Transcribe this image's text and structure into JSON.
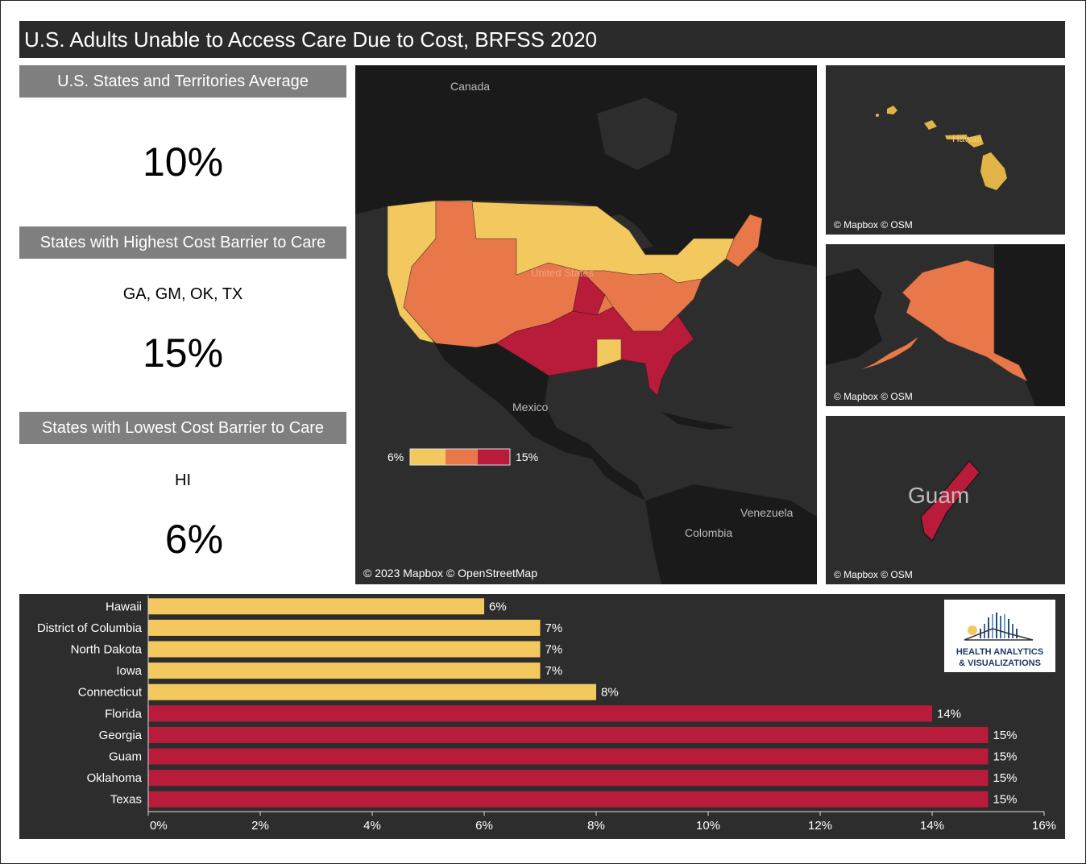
{
  "title": "U.S. Adults Unable to Access Care Due to Cost, BRFSS 2020",
  "average": {
    "header": "U.S. States and Territories Average",
    "value": "10%"
  },
  "highest": {
    "header": "States with Highest Cost Barrier to Care",
    "states": "GA, GM, OK, TX",
    "value": "15%"
  },
  "lowest": {
    "header": "States with Lowest Cost Barrier to Care",
    "states": "HI",
    "value": "6%"
  },
  "main_map": {
    "labels": {
      "canada": "Canada",
      "us": "United States",
      "mexico": "Mexico",
      "venezuela": "Venezuela",
      "colombia": "Colombia"
    },
    "legend": {
      "min": "6%",
      "max": "15%"
    },
    "attribution": "© 2023 Mapbox © OpenStreetMap"
  },
  "hawaii_map": {
    "label": "Hawaii",
    "attribution": "© Mapbox © OSM"
  },
  "alaska_map": {
    "attribution": "© Mapbox © OSM"
  },
  "guam_map": {
    "label": "Guam",
    "attribution": "© Mapbox © OSM"
  },
  "logo": {
    "line1": "HEALTH ANALYTICS",
    "line2": "& VISUALIZATIONS"
  },
  "colors": {
    "low": "#f3c95f",
    "mid": "#e8784a",
    "high": "#b81c3a",
    "panel": "#2d2d2d",
    "land": "#1a1a1a"
  },
  "chart_data": {
    "type": "bar",
    "orientation": "horizontal",
    "categories": [
      "Hawaii",
      "District of Columbia",
      "North Dakota",
      "Iowa",
      "Connecticut",
      "Florida",
      "Georgia",
      "Guam",
      "Oklahoma",
      "Texas"
    ],
    "values": [
      6,
      7,
      7,
      7,
      8,
      14,
      15,
      15,
      15,
      15
    ],
    "value_labels": [
      "6%",
      "7%",
      "7%",
      "7%",
      "8%",
      "14%",
      "15%",
      "15%",
      "15%",
      "15%"
    ],
    "bar_colors": [
      "#f3c95f",
      "#f3c95f",
      "#f3c95f",
      "#f3c95f",
      "#f3c95f",
      "#b81c3a",
      "#b81c3a",
      "#b81c3a",
      "#b81c3a",
      "#b81c3a"
    ],
    "xlim": [
      0,
      16
    ],
    "xticks": [
      0,
      2,
      4,
      6,
      8,
      10,
      12,
      14,
      16
    ],
    "xtick_labels": [
      "0%",
      "2%",
      "4%",
      "6%",
      "8%",
      "10%",
      "12%",
      "14%",
      "16%"
    ],
    "title": "",
    "xlabel": "",
    "ylabel": ""
  }
}
